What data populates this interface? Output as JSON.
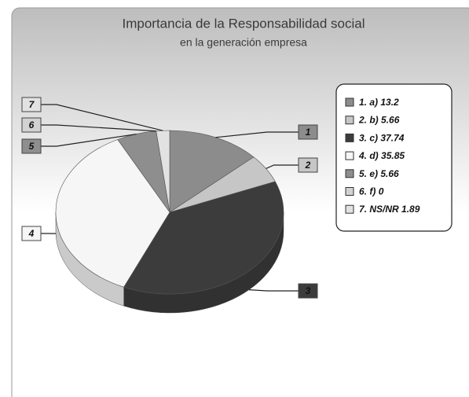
{
  "chart_data": {
    "type": "pie",
    "title": "Importancia de la Responsabilidad social",
    "subtitle": "en la generación empresa",
    "categories": [
      "1. a)",
      "2. b)",
      "3. c)",
      "4. d)",
      "5. e)",
      "6. f)",
      "7. NS/NR"
    ],
    "values": [
      13.2,
      5.66,
      37.74,
      35.85,
      5.66,
      0,
      1.89
    ],
    "slice_labels": [
      "1",
      "2",
      "3",
      "4",
      "5",
      "6",
      "7"
    ],
    "colors": [
      "#8c8c8c",
      "#c6c6c6",
      "#3c3c3c",
      "#f6f6f6",
      "#8e8e8e",
      "#d2d2d2",
      "#e2e2e2"
    ],
    "legend": "right"
  }
}
